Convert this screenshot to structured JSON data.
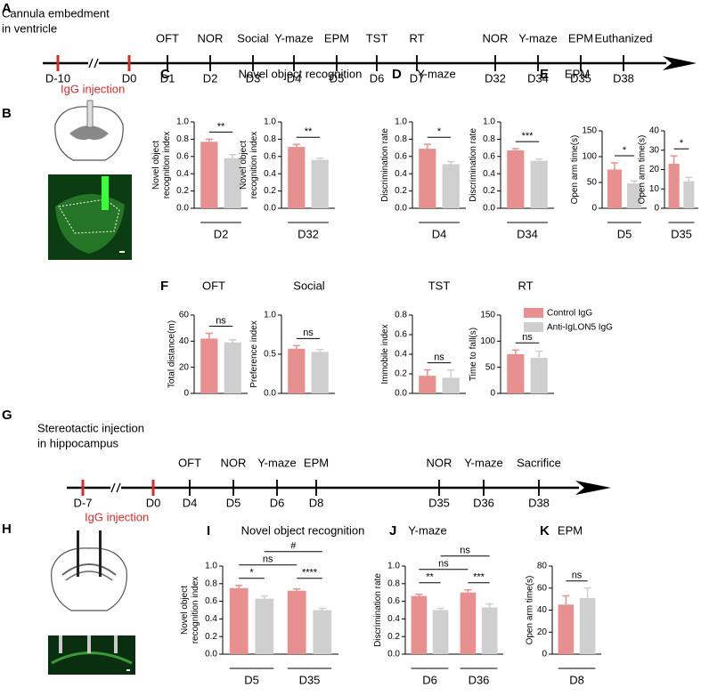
{
  "panels": [
    "A",
    "B",
    "C",
    "D",
    "E",
    "F",
    "G",
    "H",
    "I",
    "J",
    "K"
  ],
  "timelines": [
    {
      "description": [
        "Cannula embedment",
        "in ventricle"
      ],
      "injection_label": "IgG injection",
      "days": [
        {
          "day": "D-10",
          "test": null,
          "injection": true
        },
        {
          "day": "D0",
          "test": null,
          "injection": true
        },
        {
          "day": "D1",
          "test": "OFT",
          "injection": false
        },
        {
          "day": "D2",
          "test": "NOR",
          "injection": false
        },
        {
          "day": "D3",
          "test": "Social",
          "injection": false
        },
        {
          "day": "D4",
          "test": "Y-maze",
          "injection": false
        },
        {
          "day": "D5",
          "test": "EPM",
          "injection": false
        },
        {
          "day": "D6",
          "test": "TST",
          "injection": false
        },
        {
          "day": "D7",
          "test": "RT",
          "injection": false
        },
        {
          "day": "D32",
          "test": "NOR",
          "injection": false
        },
        {
          "day": "D34",
          "test": "Y-maze",
          "injection": false
        },
        {
          "day": "D35",
          "test": "EPM",
          "injection": false
        },
        {
          "day": "D38",
          "test": "Euthanized",
          "injection": false
        }
      ]
    },
    {
      "description": [
        "Stereotactic injection",
        "in hippocampus"
      ],
      "injection_label": "IgG injection",
      "days": [
        {
          "day": "D-7",
          "test": null,
          "injection": true
        },
        {
          "day": "D0",
          "test": null,
          "injection": true
        },
        {
          "day": "D4",
          "test": "OFT",
          "injection": false
        },
        {
          "day": "D5",
          "test": "NOR",
          "injection": false
        },
        {
          "day": "D6",
          "test": "Y-maze",
          "injection": false
        },
        {
          "day": "D8",
          "test": "EPM",
          "injection": false
        },
        {
          "day": "D35",
          "test": "NOR",
          "injection": false
        },
        {
          "day": "D36",
          "test": "Y-maze",
          "injection": false
        },
        {
          "day": "D38",
          "test": "Sacrifice",
          "injection": false
        }
      ]
    }
  ],
  "legend": [
    {
      "name": "Control IgG",
      "color": "#e8908f"
    },
    {
      "name": "Anti-IgLON5 IgG",
      "color": "#cfcfcf"
    }
  ],
  "chart_data": [
    {
      "type": "bar",
      "title": "Novel object recognition",
      "categories": [
        "D2"
      ],
      "ylabel": [
        "Novel object",
        "recognition index"
      ],
      "ylim": [
        0,
        1.0
      ],
      "yticks": [
        {
          "value": 0,
          "label": "0.0"
        },
        {
          "value": 0.2,
          "label": "0.2"
        },
        {
          "value": 0.4,
          "label": "0.4"
        },
        {
          "value": 0.6,
          "label": "0.6"
        },
        {
          "value": 0.8,
          "label": "0.8"
        },
        {
          "value": 1.0,
          "label": "1.0"
        }
      ],
      "series": [
        {
          "values": [
            0.77
          ],
          "errors": [
            0.03
          ]
        },
        {
          "values": [
            0.58
          ],
          "errors": [
            0.04
          ]
        }
      ],
      "significance": "**"
    },
    {
      "type": "bar",
      "categories": [
        "D32"
      ],
      "ylabel": [
        "Novel object",
        "recognition index"
      ],
      "ylim": [
        0,
        1.0
      ],
      "yticks": [
        {
          "value": 0,
          "label": "0.0"
        },
        {
          "value": 0.2,
          "label": "0.2"
        },
        {
          "value": 0.4,
          "label": "0.4"
        },
        {
          "value": 0.6,
          "label": "0.6"
        },
        {
          "value": 0.8,
          "label": "0.8"
        },
        {
          "value": 1.0,
          "label": "1.0"
        }
      ],
      "series": [
        {
          "values": [
            0.71
          ],
          "errors": [
            0.03
          ]
        },
        {
          "values": [
            0.56
          ],
          "errors": [
            0.02
          ]
        }
      ],
      "significance": "**"
    },
    {
      "type": "bar",
      "title": "Y-maze",
      "categories": [
        "D4"
      ],
      "ylabel": [
        "Discrimination rate"
      ],
      "ylim": [
        0,
        1.0
      ],
      "yticks": [
        {
          "value": 0,
          "label": "0.0"
        },
        {
          "value": 0.2,
          "label": "0.2"
        },
        {
          "value": 0.4,
          "label": "0.4"
        },
        {
          "value": 0.6,
          "label": "0.6"
        },
        {
          "value": 0.8,
          "label": "0.8"
        },
        {
          "value": 1.0,
          "label": "1.0"
        }
      ],
      "series": [
        {
          "values": [
            0.69
          ],
          "errors": [
            0.05
          ]
        },
        {
          "values": [
            0.51
          ],
          "errors": [
            0.03
          ]
        }
      ],
      "significance": "*"
    },
    {
      "type": "bar",
      "categories": [
        "D34"
      ],
      "ylabel": [
        "Discrimination rate"
      ],
      "ylim": [
        0,
        1.0
      ],
      "yticks": [
        {
          "value": 0,
          "label": "0.0"
        },
        {
          "value": 0.2,
          "label": "0.2"
        },
        {
          "value": 0.4,
          "label": "0.4"
        },
        {
          "value": 0.6,
          "label": "0.6"
        },
        {
          "value": 0.8,
          "label": "0.8"
        },
        {
          "value": 1.0,
          "label": "1.0"
        }
      ],
      "series": [
        {
          "values": [
            0.67
          ],
          "errors": [
            0.02
          ]
        },
        {
          "values": [
            0.55
          ],
          "errors": [
            0.02
          ]
        }
      ],
      "significance": "***"
    },
    {
      "type": "bar",
      "title": "EPM",
      "categories": [
        "D5"
      ],
      "ylabel": [
        "Open arm time(s)"
      ],
      "ylim": [
        0,
        150
      ],
      "yticks": [
        0,
        50,
        100,
        150
      ],
      "series": [
        {
          "values": [
            75
          ],
          "errors": [
            13
          ]
        },
        {
          "values": [
            48
          ],
          "errors": [
            5
          ]
        }
      ],
      "significance": "*"
    },
    {
      "type": "bar",
      "categories": [
        "D35"
      ],
      "ylabel": [
        "Open arm time(s)"
      ],
      "ylim": [
        0,
        40
      ],
      "yticks": [
        0,
        10,
        20,
        30,
        40
      ],
      "series": [
        {
          "values": [
            23
          ],
          "errors": [
            4
          ]
        },
        {
          "values": [
            14
          ],
          "errors": [
            2
          ]
        }
      ],
      "significance": "*"
    },
    {
      "type": "bar",
      "title": "OFT",
      "ylabel": [
        "Total distance(m)"
      ],
      "ylim": [
        0,
        60
      ],
      "yticks": [
        0,
        20,
        40,
        60
      ],
      "series": [
        {
          "values": [
            42
          ],
          "errors": [
            4
          ]
        },
        {
          "values": [
            39
          ],
          "errors": [
            2
          ]
        }
      ],
      "significance": "ns"
    },
    {
      "type": "bar",
      "title": "Social",
      "ylabel": [
        "Preference index"
      ],
      "ylim": [
        0,
        1.0
      ],
      "yticks": [
        {
          "value": 0,
          "label": "0.0"
        },
        {
          "value": 0.5,
          "label": "0.5"
        },
        {
          "value": 1.0,
          "label": "1.0"
        }
      ],
      "series": [
        {
          "values": [
            0.57
          ],
          "errors": [
            0.04
          ]
        },
        {
          "values": [
            0.53
          ],
          "errors": [
            0.03
          ]
        }
      ],
      "significance": "ns"
    },
    {
      "type": "bar",
      "title": "TST",
      "ylabel": [
        "Immobile index"
      ],
      "ylim": [
        0,
        0.8
      ],
      "yticks": [
        {
          "value": 0,
          "label": "0.0"
        },
        {
          "value": 0.2,
          "label": "0.2"
        },
        {
          "value": 0.4,
          "label": "0.4"
        },
        {
          "value": 0.6,
          "label": "0.6"
        },
        {
          "value": 0.8,
          "label": "0.8"
        }
      ],
      "series": [
        {
          "values": [
            0.18
          ],
          "errors": [
            0.06
          ]
        },
        {
          "values": [
            0.16
          ],
          "errors": [
            0.08
          ]
        }
      ],
      "significance": "ns"
    },
    {
      "type": "bar",
      "title": "RT",
      "ylabel": [
        "Time to fall(s)"
      ],
      "ylim": [
        0,
        150
      ],
      "yticks": [
        0,
        50,
        100,
        150
      ],
      "series": [
        {
          "values": [
            75
          ],
          "errors": [
            8
          ]
        },
        {
          "values": [
            68
          ],
          "errors": [
            13
          ]
        }
      ],
      "significance": "ns"
    },
    {
      "type": "bar",
      "title": "Novel object recognition",
      "categories": [
        "D5",
        "D35"
      ],
      "ylabel": [
        "Novel object",
        "recognition index"
      ],
      "ylim": [
        0,
        1.0
      ],
      "yticks": [
        {
          "value": 0,
          "label": "0.0"
        },
        {
          "value": 0.2,
          "label": "0.2"
        },
        {
          "value": 0.4,
          "label": "0.4"
        },
        {
          "value": 0.6,
          "label": "0.6"
        },
        {
          "value": 0.8,
          "label": "0.8"
        },
        {
          "value": 1.0,
          "label": "1.0"
        }
      ],
      "series": [
        {
          "values": [
            0.75,
            0.72
          ],
          "errors": [
            0.03,
            0.02
          ]
        },
        {
          "values": [
            0.63,
            0.5
          ],
          "errors": [
            0.03,
            0.02
          ]
        }
      ],
      "category_significance": [
        "*",
        "****"
      ],
      "series_significance": [
        "ns",
        "#"
      ]
    },
    {
      "type": "bar",
      "title": "Y-maze",
      "categories": [
        "D6",
        "D36"
      ],
      "ylabel": [
        "Discrimination rate"
      ],
      "ylim": [
        0,
        1.0
      ],
      "yticks": [
        {
          "value": 0,
          "label": "0.0"
        },
        {
          "value": 0.2,
          "label": "0.2"
        },
        {
          "value": 0.4,
          "label": "0.4"
        },
        {
          "value": 0.6,
          "label": "0.6"
        },
        {
          "value": 0.8,
          "label": "0.8"
        },
        {
          "value": 1.0,
          "label": "1.0"
        }
      ],
      "series": [
        {
          "values": [
            0.66,
            0.7
          ],
          "errors": [
            0.02,
            0.03
          ]
        },
        {
          "values": [
            0.5,
            0.53
          ],
          "errors": [
            0.02,
            0.04
          ]
        }
      ],
      "category_significance": [
        "**",
        "***"
      ],
      "series_significance": [
        "ns",
        "ns"
      ]
    },
    {
      "type": "bar",
      "title": "EPM",
      "categories": [
        "D8"
      ],
      "ylabel": [
        "Open arm time(s)"
      ],
      "ylim": [
        0,
        80
      ],
      "yticks": [
        0,
        20,
        40,
        60,
        80
      ],
      "series": [
        {
          "values": [
            45
          ],
          "errors": [
            8
          ]
        },
        {
          "values": [
            51
          ],
          "errors": [
            9
          ]
        }
      ],
      "significance": "ns"
    }
  ]
}
